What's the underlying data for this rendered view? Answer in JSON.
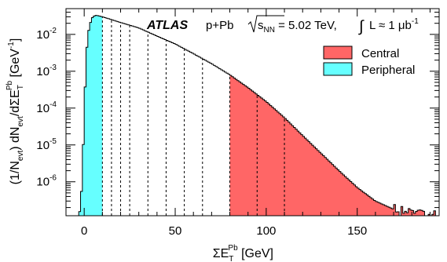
{
  "chart_data": {
    "type": "area",
    "title": "",
    "experiment": "ATLAS",
    "system": "p+Pb",
    "energy_pre": "s",
    "energy_sub": "NN",
    "energy_post": " = 5.02 TeV,",
    "lumi_pre": "L ≈ 1 μb",
    "lumi_sup": "-1",
    "xlabel": {
      "main": "ΣE",
      "sub": "T",
      "sup": "Pb",
      "unit": " [GeV]"
    },
    "ylabel": {
      "p1": "(1/N",
      "s1": "evt",
      "p2": ") dN",
      "s2": "evt",
      "p3": "/dΣE",
      "sub3": "T",
      "sup3": "Pb",
      "p4": " [GeV",
      "sup4": "-1",
      "p5": "]"
    },
    "xlim": [
      -10,
      195
    ],
    "ylim": [
      1.2e-07,
      0.05
    ],
    "yscale": "log",
    "x_ticks": [
      0,
      50,
      100,
      150
    ],
    "x_tick_labels": [
      "0",
      "50",
      "100",
      "150"
    ],
    "y_ticks": [
      1e-06,
      1e-05,
      0.0001,
      0.001,
      0.01
    ],
    "y_tick_labels": [
      {
        "base": "10",
        "exp": "-6"
      },
      {
        "base": "10",
        "exp": "-5"
      },
      {
        "base": "10",
        "exp": "-4"
      },
      {
        "base": "10",
        "exp": "-3"
      },
      {
        "base": "10",
        "exp": "-2"
      }
    ],
    "bin_width": 1,
    "distribution_points": [
      [
        -3,
        1.2e-07
      ],
      [
        -2,
        2e-07
      ],
      [
        -1,
        1.5e-06
      ],
      [
        0,
        7e-05
      ],
      [
        1,
        0.002
      ],
      [
        2,
        0.01
      ],
      [
        4,
        0.027
      ],
      [
        6,
        0.033
      ],
      [
        8,
        0.032
      ],
      [
        12,
        0.028
      ],
      [
        20,
        0.021
      ],
      [
        30,
        0.015
      ],
      [
        40,
        0.009
      ],
      [
        50,
        0.0055
      ],
      [
        60,
        0.003
      ],
      [
        70,
        0.0016
      ],
      [
        80,
        0.0008
      ],
      [
        90,
        0.00036
      ],
      [
        100,
        0.00015
      ],
      [
        110,
        5.5e-05
      ],
      [
        120,
        1.8e-05
      ],
      [
        130,
        6e-06
      ],
      [
        140,
        2e-06
      ],
      [
        150,
        7e-07
      ],
      [
        160,
        3e-07
      ],
      [
        170,
        1.8e-07
      ],
      [
        180,
        1.3e-07
      ],
      [
        190,
        1.2e-07
      ]
    ],
    "centrality_boundaries": [
      10,
      15,
      20,
      25,
      35,
      45,
      55,
      65,
      80,
      95,
      110
    ],
    "regions": [
      {
        "name": "Central",
        "from": 80,
        "to": 195,
        "color": "#ff6666"
      },
      {
        "name": "Peripheral",
        "from": -10,
        "to": 10,
        "color": "#66ffff"
      }
    ],
    "legend": [
      {
        "label": "Central",
        "color": "#ff6666"
      },
      {
        "label": "Peripheral",
        "color": "#66ffff"
      }
    ],
    "legend_position": "top-right",
    "grid": false
  }
}
